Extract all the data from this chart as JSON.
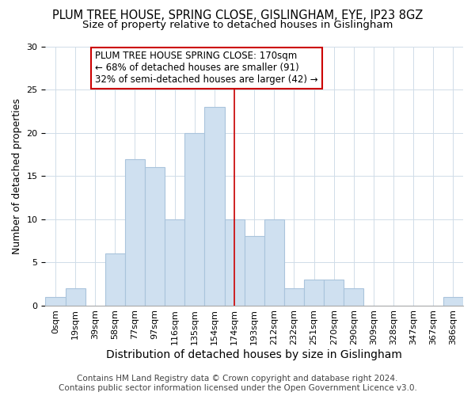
{
  "title": "PLUM TREE HOUSE, SPRING CLOSE, GISLINGHAM, EYE, IP23 8GZ",
  "subtitle": "Size of property relative to detached houses in Gislingham",
  "xlabel": "Distribution of detached houses by size in Gislingham",
  "ylabel": "Number of detached properties",
  "categories": [
    "0sqm",
    "19sqm",
    "39sqm",
    "58sqm",
    "77sqm",
    "97sqm",
    "116sqm",
    "135sqm",
    "154sqm",
    "174sqm",
    "193sqm",
    "212sqm",
    "232sqm",
    "251sqm",
    "270sqm",
    "290sqm",
    "309sqm",
    "328sqm",
    "347sqm",
    "367sqm",
    "386sqm"
  ],
  "values": [
    1,
    2,
    0,
    6,
    17,
    16,
    10,
    20,
    23,
    10,
    8,
    10,
    2,
    3,
    3,
    2,
    0,
    0,
    0,
    0,
    1
  ],
  "bar_color": "#cfe0f0",
  "bar_edge_color": "#aac4dc",
  "highlight_line_color": "#cc0000",
  "annotation_box_text": "PLUM TREE HOUSE SPRING CLOSE: 170sqm\n← 68% of detached houses are smaller (91)\n32% of semi-detached houses are larger (42) →",
  "ylim": [
    0,
    30
  ],
  "footer_text": "Contains HM Land Registry data © Crown copyright and database right 2024.\nContains public sector information licensed under the Open Government Licence v3.0.",
  "title_fontsize": 10.5,
  "subtitle_fontsize": 9.5,
  "xlabel_fontsize": 10,
  "ylabel_fontsize": 9,
  "tick_fontsize": 8,
  "annotation_fontsize": 8.5,
  "footer_fontsize": 7.5
}
